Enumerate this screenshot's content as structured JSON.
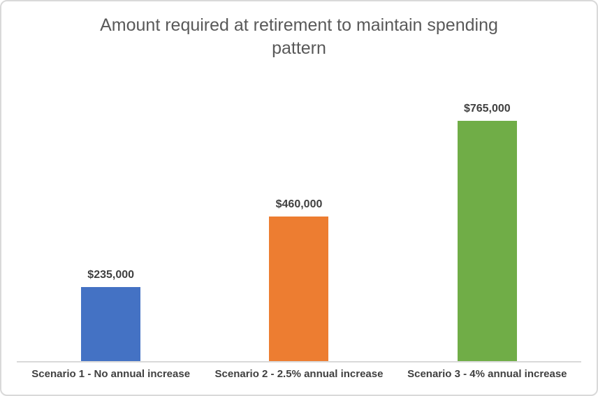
{
  "chart_data": {
    "type": "bar",
    "title": "Amount required at retirement to maintain spending pattern",
    "categories": [
      "Scenario 1 - No annual increase",
      "Scenario 2 - 2.5% annual increase",
      "Scenario 3 - 4% annual increase"
    ],
    "values": [
      235000,
      460000,
      765000
    ],
    "value_labels": [
      "$235,000",
      "$460,000",
      "$765,000"
    ],
    "bar_colors": [
      "#4472C4",
      "#ED7D31",
      "#70AD47"
    ],
    "xlabel": "",
    "ylabel": "",
    "ylim": [
      0,
      800000
    ],
    "grid": false,
    "legend": false,
    "value_axis_visible": false,
    "axis_line_color": "#D9D9D9",
    "title_color": "#595959",
    "label_color": "#404040"
  }
}
